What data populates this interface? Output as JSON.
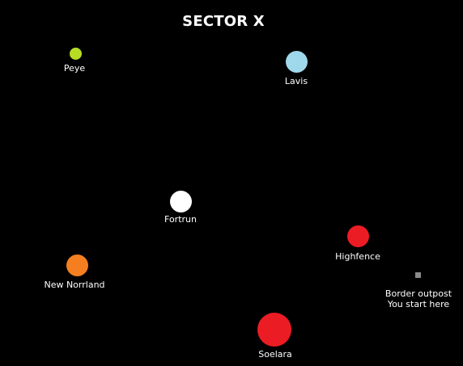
{
  "map": {
    "title": "SECTOR X",
    "planets": [
      {
        "name": "Peye",
        "color": "#b7dc24"
      },
      {
        "name": "Lavis",
        "color": "#9fd8ea"
      },
      {
        "name": "Fortrun",
        "color": "#ffffff"
      },
      {
        "name": "Highfence",
        "color": "#ec1c24"
      },
      {
        "name": "New Norrland",
        "color": "#f57f20"
      },
      {
        "name": "Soelara",
        "color": "#ec1c24"
      }
    ],
    "outpost": {
      "name": "Border outpost",
      "note": "You start here",
      "color": "#8a8a8a"
    }
  }
}
